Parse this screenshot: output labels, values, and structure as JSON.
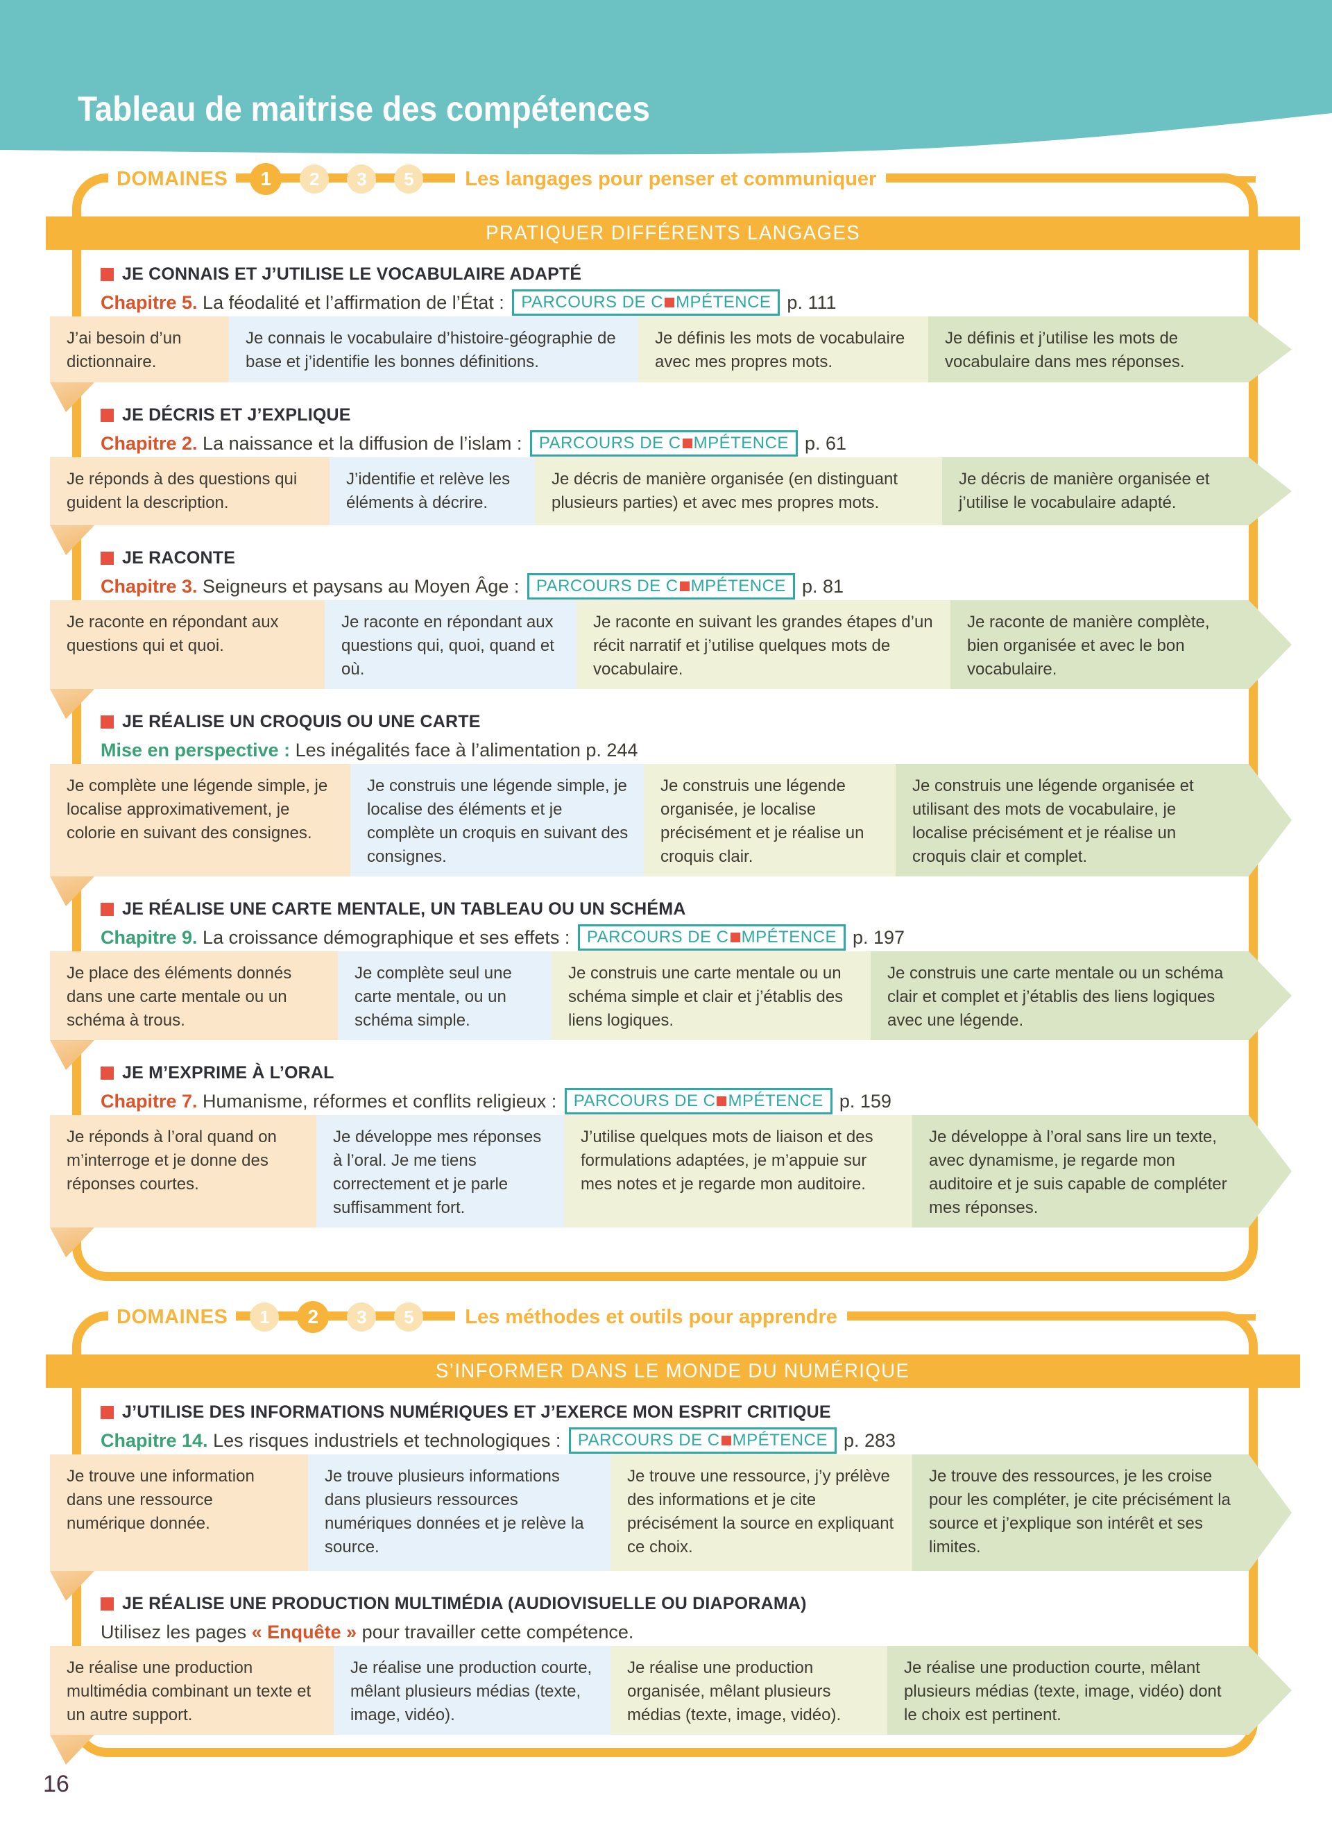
{
  "page": {
    "title": "Tableau de maitrise des compétences",
    "page_number": "16"
  },
  "badge": {
    "before": "PARCOURS DE C",
    "after": "MPÉTENCE"
  },
  "colors": {
    "teal_header": "#6CC2C3",
    "orange": "#F6B43B",
    "orange_pale": "#FAE2B2",
    "red_bullet": "#E8503F",
    "chapter_orange": "#D8552B",
    "chapter_green": "#3BA277",
    "badge_teal": "#2FA9A3",
    "level_colors": [
      "#FBE6C9",
      "#E6F1FA",
      "#EFF2D8",
      "#D9E5C4"
    ],
    "text_dark": "#3E3B33",
    "page_number_color": "#4A3040"
  },
  "domains": [
    {
      "label": "DOMAINES",
      "circles": [
        "1",
        "2",
        "3",
        "5"
      ],
      "active_circle_index": 0,
      "name": "Les langages pour penser et communiquer",
      "banner": "PRATIQUER DIFFÉRENTS LANGAGES",
      "sections": [
        {
          "title": "JE CONNAIS ET J’UTILISE LE VOCABULAIRE ADAPTÉ",
          "ref_segments": [
            {
              "text": "Chapitre 5.",
              "style": "orange"
            },
            {
              "text": " La féodalité et l’affirmation de l’État : ",
              "style": "dark"
            }
          ],
          "has_badge": true,
          "page_ref": "p. 111",
          "levels": [
            "J’ai besoin d’un dictionnaire.",
            "Je connais le vocabulaire d’histoire-géographie de base et j’identifie les bonnes définitions.",
            "Je définis les mots de vocabulaire avec mes propres mots.",
            "Je définis et j’utilise les mots de vocabulaire dans mes réponses."
          ]
        },
        {
          "title": "JE DÉCRIS ET J’EXPLIQUE",
          "ref_segments": [
            {
              "text": "Chapitre 2.",
              "style": "orange"
            },
            {
              "text": " La naissance et la diffusion de l’islam : ",
              "style": "dark"
            }
          ],
          "has_badge": true,
          "page_ref": "p. 61",
          "levels": [
            "Je réponds à des questions qui guident la description.",
            "J’identifie et relève les éléments à décrire.",
            "Je décris de manière organisée (en distinguant plusieurs parties) et avec mes propres mots.",
            "Je décris de manière organisée et j’utilise le vocabulaire adapté."
          ]
        },
        {
          "title": "JE RACONTE",
          "ref_segments": [
            {
              "text": "Chapitre 3.",
              "style": "orange"
            },
            {
              "text": " Seigneurs et paysans au Moyen Âge : ",
              "style": "dark"
            }
          ],
          "has_badge": true,
          "page_ref": "p. 81",
          "levels": [
            "Je raconte en répondant aux questions qui et quoi.",
            "Je raconte en répondant aux questions qui, quoi, quand et où.",
            "Je raconte en suivant les grandes étapes d’un récit narratif et j’utilise quelques mots de vocabulaire.",
            "Je raconte de manière complète, bien organisée et avec le bon vocabulaire."
          ]
        },
        {
          "title": "JE RÉALISE UN CROQUIS OU UNE CARTE",
          "ref_segments": [
            {
              "text": "Mise en perspective :",
              "style": "green"
            },
            {
              "text": " Les inégalités face à l’alimentation p. 244",
              "style": "dark"
            }
          ],
          "has_badge": false,
          "page_ref": "",
          "levels": [
            "Je complète une légende simple, je localise approximativement, je colorie en suivant des consignes.",
            "Je construis une légende simple, je localise des éléments et je complète un croquis en suivant des consignes.",
            "Je construis une légende organisée, je localise précisément et je réalise un croquis clair.",
            "Je construis une légende organisée et utilisant des mots de vocabulaire, je localise précisément et je réalise un croquis clair et complet."
          ]
        },
        {
          "title": "JE RÉALISE UNE CARTE MENTALE, UN TABLEAU OU UN SCHÉMA",
          "ref_segments": [
            {
              "text": "Chapitre 9.",
              "style": "green"
            },
            {
              "text": " La croissance démographique et ses effets : ",
              "style": "dark"
            }
          ],
          "has_badge": true,
          "page_ref": "p. 197",
          "levels": [
            "Je place des éléments donnés dans une carte mentale ou un schéma à trous.",
            "Je complète seul une carte mentale, ou un schéma simple.",
            "Je construis une carte mentale ou un schéma simple et clair et j’établis des liens logiques.",
            "Je construis une carte mentale ou un schéma clair et complet et j’établis des liens logiques avec une légende."
          ]
        },
        {
          "title": "JE M’EXPRIME À L’ORAL",
          "ref_segments": [
            {
              "text": "Chapitre 7.",
              "style": "orange"
            },
            {
              "text": " Humanisme, réformes et conflits religieux : ",
              "style": "dark"
            }
          ],
          "has_badge": true,
          "page_ref": "p. 159",
          "levels": [
            "Je réponds à l’oral quand on m’interroge et je donne des réponses courtes.",
            "Je développe mes réponses à l’oral. Je me tiens correctement et je parle suffisamment fort.",
            "J’utilise quelques mots de liaison et des formulations adaptées, je m’appuie sur mes notes et je regarde mon auditoire.",
            "Je développe à l’oral sans lire un texte, avec dynamisme, je regarde mon auditoire et je suis capable de compléter mes réponses."
          ]
        }
      ]
    },
    {
      "label": "DOMAINES",
      "circles": [
        "1",
        "2",
        "3",
        "5"
      ],
      "active_circle_index": 1,
      "name": "Les méthodes et outils pour apprendre",
      "banner": "S’INFORMER DANS LE MONDE DU NUMÉRIQUE",
      "sections": [
        {
          "title": "J’UTILISE DES INFORMATIONS NUMÉRIQUES ET J’EXERCE MON ESPRIT CRITIQUE",
          "ref_segments": [
            {
              "text": "Chapitre 14.",
              "style": "green"
            },
            {
              "text": " Les risques industriels et technologiques : ",
              "style": "dark"
            }
          ],
          "has_badge": true,
          "page_ref": "p. 283",
          "levels": [
            "Je trouve une information dans une ressource numérique donnée.",
            "Je trouve plusieurs informations dans plusieurs ressources numériques données et je relève la source.",
            "Je trouve une ressource, j’y prélève des informations et je cite précisément la source en expliquant ce choix.",
            "Je trouve des ressources, je les croise pour les compléter, je cite précisément la source et j’explique son intérêt et ses limites."
          ]
        },
        {
          "title": "JE RÉALISE UNE PRODUCTION MULTIMÉDIA (AUDIOVISUELLE OU DIAPORAMA)",
          "ref_segments": [
            {
              "text": "Utilisez les pages ",
              "style": "dark"
            },
            {
              "text": "« Enquête »",
              "style": "orange"
            },
            {
              "text": " pour travailler cette compétence.",
              "style": "dark"
            }
          ],
          "has_badge": false,
          "page_ref": "",
          "levels": [
            "Je réalise une production multimédia combinant un texte et un autre support.",
            "Je réalise une production courte, mêlant plusieurs médias (texte, image, vidéo).",
            "Je réalise une production organisée, mêlant plusieurs médias (texte, image, vidéo).",
            "Je réalise une production courte, mêlant plusieurs médias (texte, image, vidéo) dont le choix est pertinent."
          ]
        }
      ]
    }
  ]
}
